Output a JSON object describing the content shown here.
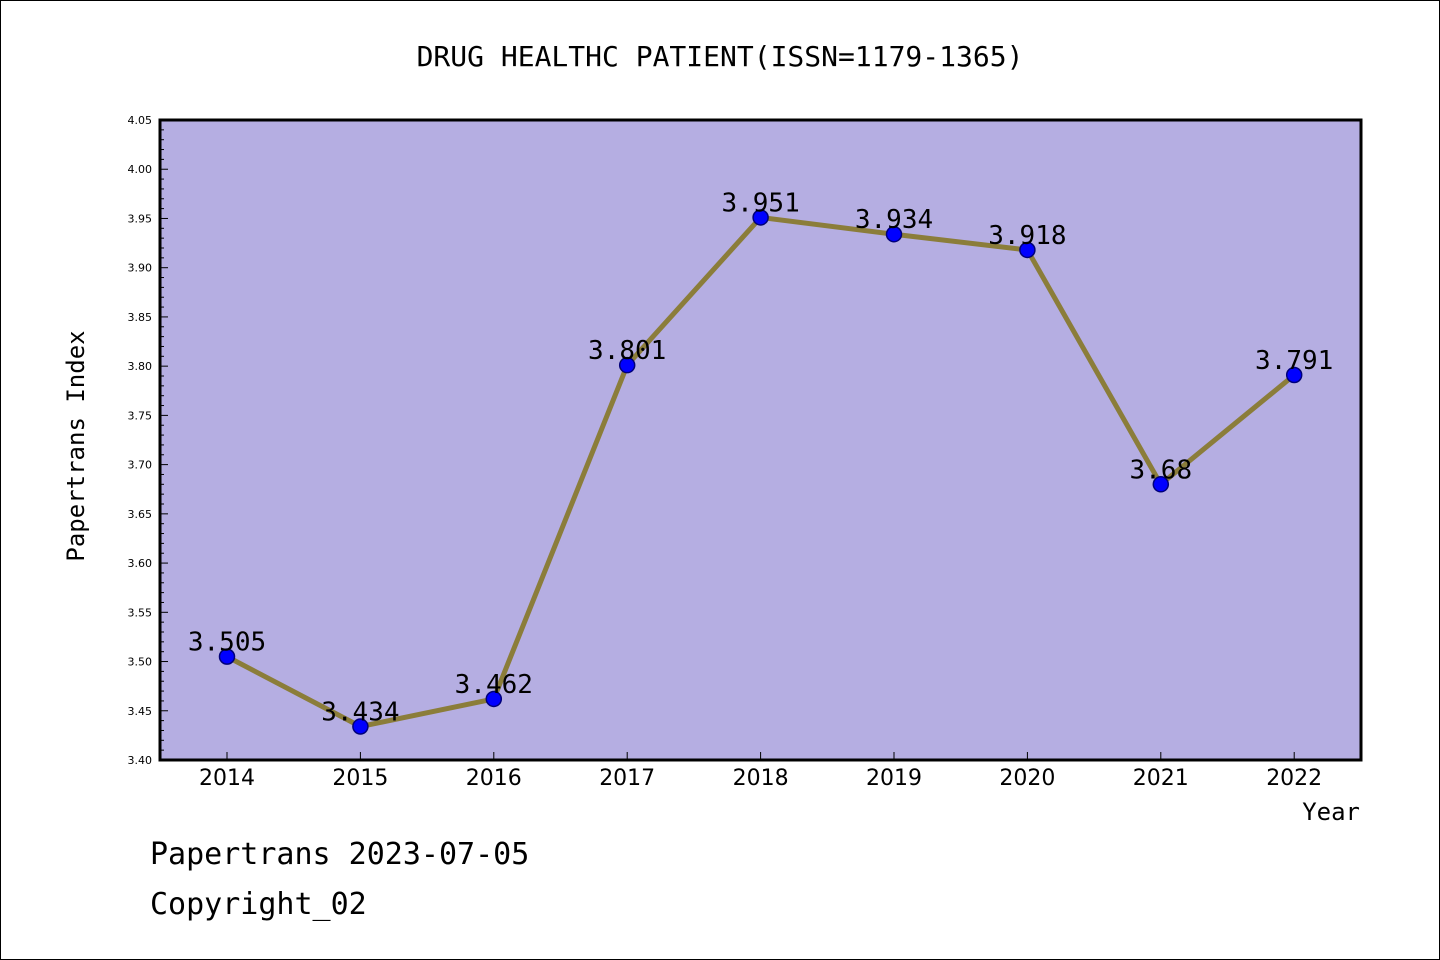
{
  "chart_data": {
    "type": "line",
    "title": "DRUG HEALTHC PATIENT(ISSN=1179-1365)",
    "xlabel": "Year",
    "ylabel": "Papertrans Index",
    "categories": [
      "2014",
      "2015",
      "2016",
      "2017",
      "2018",
      "2019",
      "2020",
      "2021",
      "2022"
    ],
    "values": [
      3.505,
      3.434,
      3.462,
      3.801,
      3.951,
      3.934,
      3.918,
      3.68,
      3.791
    ],
    "data_labels": [
      "3.505",
      "3.434",
      "3.462",
      "3.801",
      "3.951",
      "3.934",
      "3.918",
      "3.68",
      "3.791"
    ],
    "ylim": [
      3.4,
      4.05
    ],
    "yticks": [
      "3.40",
      "3.45",
      "3.50",
      "3.55",
      "3.60",
      "3.65",
      "3.70",
      "3.75",
      "3.80",
      "3.85",
      "3.90",
      "3.95",
      "4.00",
      "4.05"
    ],
    "grid": false,
    "line_color": "#8b7d3a",
    "marker_color": "#0000ff",
    "plot_background": "#b5aee2"
  },
  "footer": {
    "line1": "Papertrans 2023-07-05",
    "line2": "Copyright_02"
  }
}
